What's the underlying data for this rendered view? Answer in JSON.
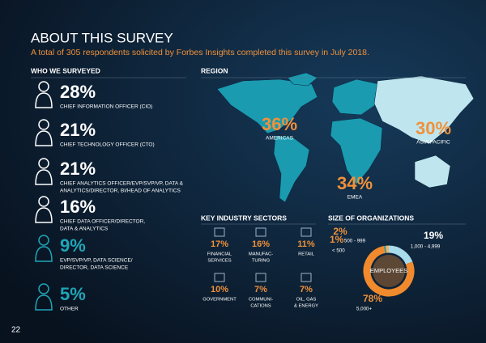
{
  "header": {
    "title": "ABOUT THIS SURVEY",
    "subtitle": "A total of 305 respondents solicited by Forbes Insights completed this survey in July 2018."
  },
  "page_number": "22",
  "respondents": {
    "heading": "WHO WE SURVEYED",
    "items": [
      {
        "percent": "28%",
        "label_lines": [
          "CHIEF INFORMATION OFFICER (CIO)"
        ]
      },
      {
        "percent": "21%",
        "label_lines": [
          "CHIEF TECHNOLOGY OFFICER (CTO)"
        ]
      },
      {
        "percent": "21%",
        "label_lines": [
          "CHIEF ANALYTICS OFFICER/EVP/SVP/VP, DATA &",
          "ANALYTICS/DIRECTOR, BI/HEAD OF ANALYTICS"
        ]
      },
      {
        "percent": "16%",
        "label_lines": [
          "CHIEF DATA OFFICER/DIRECTOR,",
          "DATA & ANALYTICS"
        ]
      },
      {
        "percent": "9%",
        "label_lines": [
          "EVP/SVP/VP, DATA SCIENCE/",
          "DIRECTOR, DATA SCIENCE"
        ]
      },
      {
        "percent": "5%",
        "label_lines": [
          "OTHER"
        ]
      }
    ]
  },
  "region": {
    "heading": "REGION",
    "items": [
      {
        "percent": "36%",
        "label": "AMERICAS"
      },
      {
        "percent": "30%",
        "label": "ASIA PACIFIC"
      },
      {
        "percent": "34%",
        "label": "EMEA"
      }
    ]
  },
  "sectors": {
    "heading": "KEY INDUSTRY SECTORS",
    "items": [
      {
        "percent": "17%",
        "label_lines": [
          "FINANCIAL",
          "SERVICES"
        ]
      },
      {
        "percent": "16%",
        "label_lines": [
          "MANUFAC-",
          "TURING"
        ]
      },
      {
        "percent": "11%",
        "label_lines": [
          "RETAIL"
        ]
      },
      {
        "percent": "10%",
        "label_lines": [
          "GOVERNMENT"
        ]
      },
      {
        "percent": "7%",
        "label_lines": [
          "COMMUNI-",
          "CATIONS"
        ]
      },
      {
        "percent": "7%",
        "label_lines": [
          "OIL, GAS",
          "& ENERGY"
        ]
      }
    ]
  },
  "organizations": {
    "heading": "SIZE OF ORGANIZATIONS",
    "center_label": "EMPLOYEES",
    "segments": [
      {
        "value": 19,
        "value_label": "19%",
        "name": "1,000 - 4,999",
        "color": "#a9dcea"
      },
      {
        "value": 78,
        "value_label": "78%",
        "name": "5,000+",
        "color": "#f08a2c"
      },
      {
        "value": 1,
        "value_label": "1%",
        "name": "< 500",
        "color": "#1fa6b8"
      },
      {
        "value": 2,
        "value_label": "2%",
        "name": "500 - 999",
        "color": "#f5b36b"
      }
    ]
  }
}
